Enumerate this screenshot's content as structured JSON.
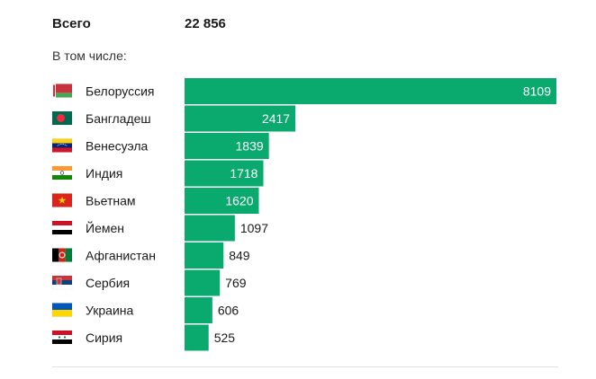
{
  "header": {
    "total_label": "Всего",
    "total_value": "22 856",
    "subtitle": "В том числе:"
  },
  "colors": {
    "bar": "#0aa96e",
    "inside_label": "#ffffff",
    "label": "#1a1a1a"
  },
  "chart_data": {
    "type": "bar",
    "orientation": "horizontal",
    "categories": [
      "Белоруссия",
      "Бангладеш",
      "Венесуэла",
      "Индия",
      "Вьетнам",
      "Йемен",
      "Афганистан",
      "Сербия",
      "Украина",
      "Сирия"
    ],
    "values": [
      8109,
      2417,
      1839,
      1718,
      1620,
      1097,
      849,
      769,
      606,
      525
    ],
    "flags": [
      "belarus-flag-icon",
      "bangladesh-flag-icon",
      "venezuela-flag-icon",
      "india-flag-icon",
      "vietnam-flag-icon",
      "yemen-flag-icon",
      "afghanistan-flag-icon",
      "serbia-flag-icon",
      "ukraine-flag-icon",
      "syria-flag-icon"
    ],
    "xlim": [
      0,
      8109
    ],
    "grid": false,
    "data_labels": true
  }
}
